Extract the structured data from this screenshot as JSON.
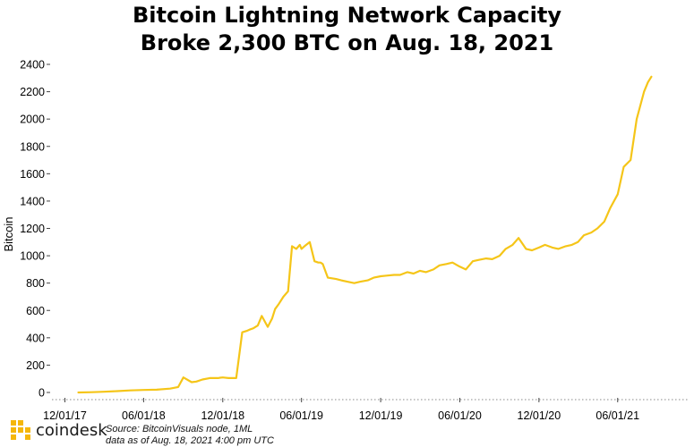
{
  "title_line1": "Bitcoin Lightning Network Capacity",
  "title_line2": "Broke 2,300 BTC on Aug. 18, 2021",
  "brand": {
    "name": "coindesk",
    "logo_icon": "coindesk-logo-icon",
    "color": "#f5b70b"
  },
  "footer": {
    "source": "Source: BitcoinVisuals node, 1ML",
    "asof": "data as of Aug. 18, 2021 4:00 pm UTC"
  },
  "chart_data": {
    "type": "line",
    "title": "Bitcoin Lightning Network Capacity Broke 2,300 BTC on Aug. 18, 2021",
    "xlabel": "",
    "ylabel": "Bitcoin",
    "ylim": [
      0,
      2400
    ],
    "yticks": [
      0,
      200,
      400,
      600,
      800,
      1000,
      1200,
      1400,
      1600,
      1800,
      2000,
      2200,
      2400
    ],
    "ytick_labels": [
      "0",
      "200",
      "400",
      "600",
      "800",
      "1000",
      "1200",
      "1400",
      "1600",
      "1800",
      "2000",
      "2200",
      "2400"
    ],
    "xlim": [
      "2017-11-01",
      "2021-11-10"
    ],
    "xticks": [
      "2017-12-01",
      "2018-06-01",
      "2018-12-01",
      "2019-06-01",
      "2019-12-01",
      "2020-06-01",
      "2020-12-01",
      "2021-06-01"
    ],
    "xtick_labels": [
      "12/01/17",
      "06/01/18",
      "12/01/18",
      "06/01/19",
      "12/01/19",
      "06/01/20",
      "12/01/20",
      "06/01/21"
    ],
    "grid": "none",
    "legend": "none",
    "line_color": "#f5c518",
    "series": [
      {
        "x": [
          "2018-01-01",
          "2018-02-01",
          "2018-03-01",
          "2018-04-01",
          "2018-05-01",
          "2018-06-01",
          "2018-07-01",
          "2018-08-01",
          "2018-08-20",
          "2018-09-01",
          "2018-09-20",
          "2018-10-01",
          "2018-10-15",
          "2018-11-01",
          "2018-11-20",
          "2018-11-25",
          "2018-12-01",
          "2018-12-15",
          "2019-01-01",
          "2019-01-15",
          "2019-01-25",
          "2019-02-01",
          "2019-02-10",
          "2019-02-20",
          "2019-03-01",
          "2019-03-15",
          "2019-03-25",
          "2019-04-01",
          "2019-04-10",
          "2019-04-20",
          "2019-05-01",
          "2019-05-10",
          "2019-05-20",
          "2019-05-28",
          "2019-06-01",
          "2019-06-10",
          "2019-06-20",
          "2019-07-01",
          "2019-07-10",
          "2019-07-15",
          "2019-07-20",
          "2019-08-01",
          "2019-08-20",
          "2019-09-01",
          "2019-09-15",
          "2019-10-01",
          "2019-10-15",
          "2019-11-01",
          "2019-11-15",
          "2019-12-01",
          "2019-12-15",
          "2020-01-01",
          "2020-01-15",
          "2020-02-01",
          "2020-02-15",
          "2020-03-01",
          "2020-03-15",
          "2020-04-01",
          "2020-04-15",
          "2020-05-01",
          "2020-05-15",
          "2020-06-01",
          "2020-06-15",
          "2020-07-01",
          "2020-07-15",
          "2020-08-01",
          "2020-08-15",
          "2020-09-01",
          "2020-09-15",
          "2020-10-01",
          "2020-10-15",
          "2020-11-01",
          "2020-11-15",
          "2020-12-01",
          "2020-12-15",
          "2021-01-01",
          "2021-01-15",
          "2021-02-01",
          "2021-02-15",
          "2021-03-01",
          "2021-03-15",
          "2021-04-01",
          "2021-04-15",
          "2021-05-01",
          "2021-05-15",
          "2021-06-01",
          "2021-06-15",
          "2021-07-01",
          "2021-07-15",
          "2021-08-01",
          "2021-08-10",
          "2021-08-18"
        ],
        "y": [
          0,
          2,
          5,
          10,
          15,
          18,
          20,
          28,
          40,
          110,
          75,
          80,
          95,
          105,
          105,
          108,
          110,
          105,
          105,
          440,
          450,
          460,
          470,
          490,
          560,
          480,
          540,
          610,
          650,
          700,
          740,
          1070,
          1050,
          1080,
          1050,
          1075,
          1100,
          960,
          950,
          950,
          940,
          840,
          830,
          820,
          810,
          800,
          810,
          820,
          840,
          850,
          855,
          860,
          860,
          880,
          870,
          890,
          880,
          900,
          930,
          940,
          950,
          920,
          900,
          960,
          970,
          980,
          975,
          1000,
          1050,
          1080,
          1130,
          1050,
          1040,
          1060,
          1080,
          1060,
          1050,
          1070,
          1080,
          1100,
          1150,
          1170,
          1200,
          1250,
          1350,
          1450,
          1650,
          1700,
          2000,
          2200,
          2270,
          2310
        ]
      }
    ]
  }
}
